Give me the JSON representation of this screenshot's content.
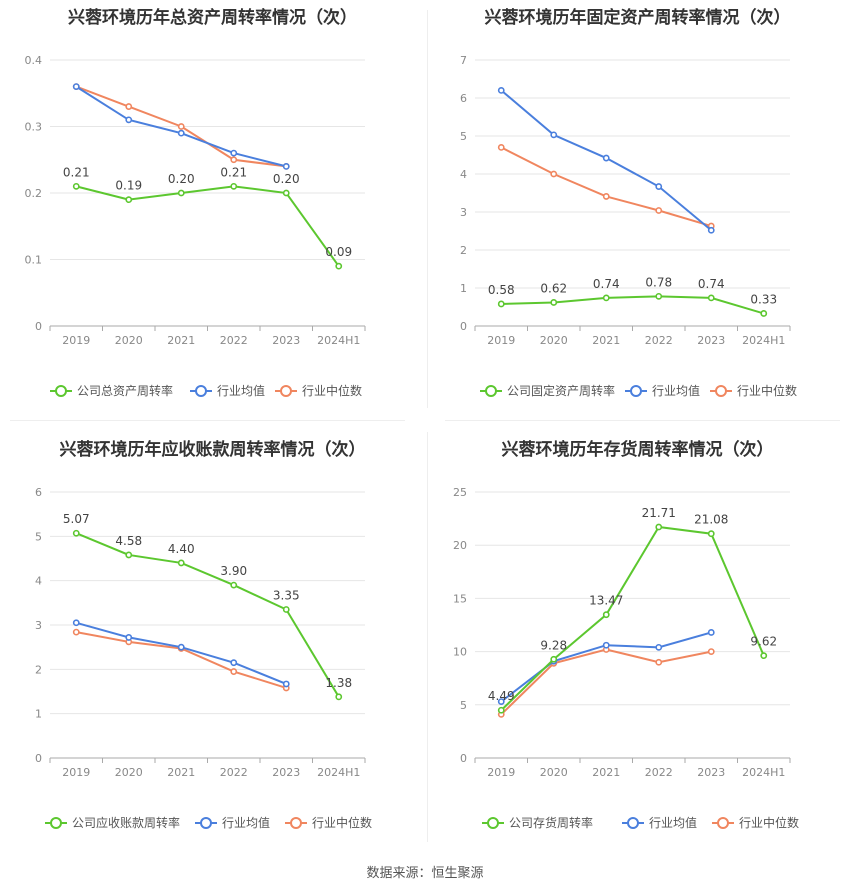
{
  "footer": {
    "source_label": "数据来源：恒生聚源"
  },
  "colors": {
    "company": "#5cc72f",
    "avg": "#4a7fdd",
    "median": "#f0865f",
    "grid": "#e6e6e6",
    "axis": "#aaaaaa"
  },
  "chart_data": [
    {
      "type": "line",
      "title": "兴蓉环境历年总资产周转率情况（次）",
      "categories": [
        "2019",
        "2020",
        "2021",
        "2022",
        "2023",
        "2024H1"
      ],
      "ylim": [
        0,
        0.4
      ],
      "yticks": [
        "0",
        "0.1",
        "0.2",
        "0.3",
        "0.4"
      ],
      "ytick_values": [
        0,
        0.1,
        0.2,
        0.3,
        0.4
      ],
      "grid": true,
      "legend_position": "bottom",
      "series": [
        {
          "name": "公司总资产周转率",
          "role": "company",
          "values": [
            0.21,
            0.19,
            0.2,
            0.21,
            0.2,
            0.09
          ],
          "labels": [
            "0.21",
            "0.19",
            "0.20",
            "0.21",
            "0.20",
            "0.09"
          ]
        },
        {
          "name": "行业均值",
          "role": "avg",
          "values": [
            0.36,
            0.31,
            0.29,
            0.26,
            0.24,
            null
          ]
        },
        {
          "name": "行业中位数",
          "role": "median",
          "values": [
            0.36,
            0.33,
            0.3,
            0.25,
            0.24,
            null
          ]
        }
      ]
    },
    {
      "type": "line",
      "title": "兴蓉环境历年固定资产周转率情况（次）",
      "categories": [
        "2019",
        "2020",
        "2021",
        "2022",
        "2023",
        "2024H1"
      ],
      "ylim": [
        0,
        7
      ],
      "yticks": [
        "0",
        "1",
        "2",
        "3",
        "4",
        "5",
        "6",
        "7"
      ],
      "ytick_values": [
        0,
        1,
        2,
        3,
        4,
        5,
        6,
        7
      ],
      "grid": true,
      "legend_position": "bottom",
      "series": [
        {
          "name": "公司固定资产周转率",
          "role": "company",
          "values": [
            0.58,
            0.62,
            0.74,
            0.78,
            0.74,
            0.33
          ],
          "labels": [
            "0.58",
            "0.62",
            "0.74",
            "0.78",
            "0.74",
            "0.33"
          ]
        },
        {
          "name": "行业均值",
          "role": "avg",
          "values": [
            6.2,
            5.03,
            4.42,
            3.67,
            2.52,
            null
          ]
        },
        {
          "name": "行业中位数",
          "role": "median",
          "values": [
            4.7,
            4.0,
            3.41,
            3.04,
            2.63,
            null
          ]
        }
      ]
    },
    {
      "type": "line",
      "title": "兴蓉环境历年应收账款周转率情况（次）",
      "categories": [
        "2019",
        "2020",
        "2021",
        "2022",
        "2023",
        "2024H1"
      ],
      "ylim": [
        0,
        6
      ],
      "yticks": [
        "0",
        "1",
        "2",
        "3",
        "4",
        "5",
        "6"
      ],
      "ytick_values": [
        0,
        1,
        2,
        3,
        4,
        5,
        6
      ],
      "grid": true,
      "legend_position": "bottom",
      "series": [
        {
          "name": "公司应收账款周转率",
          "role": "company",
          "values": [
            5.07,
            4.58,
            4.4,
            3.9,
            3.35,
            1.38
          ],
          "labels": [
            "5.07",
            "4.58",
            "4.40",
            "3.90",
            "3.35",
            "1.38"
          ]
        },
        {
          "name": "行业均值",
          "role": "avg",
          "values": [
            3.05,
            2.72,
            2.5,
            2.15,
            1.67,
            null
          ]
        },
        {
          "name": "行业中位数",
          "role": "median",
          "values": [
            2.84,
            2.62,
            2.47,
            1.95,
            1.58,
            null
          ]
        }
      ]
    },
    {
      "type": "line",
      "title": "兴蓉环境历年存货周转率情况（次）",
      "categories": [
        "2019",
        "2020",
        "2021",
        "2022",
        "2023",
        "2024H1"
      ],
      "ylim": [
        0,
        25
      ],
      "yticks": [
        "0",
        "5",
        "10",
        "15",
        "20",
        "25"
      ],
      "ytick_values": [
        0,
        5,
        10,
        15,
        20,
        25
      ],
      "grid": true,
      "legend_position": "bottom",
      "series": [
        {
          "name": "公司存货周转率",
          "role": "company",
          "values": [
            4.49,
            9.28,
            13.47,
            21.71,
            21.08,
            9.62
          ],
          "labels": [
            "4.49",
            "9.28",
            "13.47",
            "21.71",
            "21.08",
            "9.62"
          ]
        },
        {
          "name": "行业均值",
          "role": "avg",
          "values": [
            5.3,
            9.1,
            10.6,
            10.4,
            11.8,
            null
          ]
        },
        {
          "name": "行业中位数",
          "role": "median",
          "values": [
            4.1,
            8.9,
            10.2,
            9.0,
            10.0,
            null
          ]
        }
      ]
    }
  ]
}
